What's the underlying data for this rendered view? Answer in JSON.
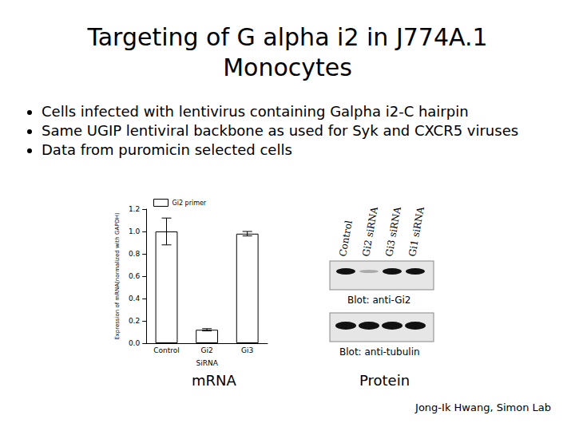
{
  "slide": {
    "title": [
      "Targeting of G alpha i2 in J774A.1",
      "Monocytes"
    ],
    "bullets": [
      "Cells infected with lentivirus containing Galpha i2-C hairpin",
      "Same UGIP lentiviral backbone as used for Syk and CXCR5 viruses",
      "Data from puromicin selected cells"
    ],
    "blot": {
      "lanes": [
        "Control",
        "Gi2 siRNA",
        "Gi3 siRNA",
        "Gi1 siRNA"
      ],
      "panels": [
        "Blot: anti-Gi2",
        "Blot: anti-tubulin"
      ]
    },
    "captions": [
      "mRNA",
      "Protein"
    ],
    "credit": "Jong-Ik Hwang, Simon Lab"
  },
  "chart_data": {
    "type": "bar",
    "categories": [
      "Control",
      "Gi2",
      "Gi3"
    ],
    "series": [
      {
        "name": "Gi2 primer",
        "color": "#ffffff",
        "values": [
          1.0,
          0.12,
          0.98
        ],
        "error": [
          0.12,
          0.01,
          0.02
        ]
      }
    ],
    "xlabel": "SiRNA",
    "ylabel": "Expression of mRNA(normalized with GAPDH)",
    "ylim": [
      0,
      1.2
    ],
    "yticks": [
      {
        "value": 0,
        "label": "0.0"
      },
      0.2,
      0.4,
      0.6,
      0.8,
      {
        "value": 1,
        "label": "1.0"
      },
      1.2
    ],
    "legend": "upper left",
    "grid": false
  }
}
